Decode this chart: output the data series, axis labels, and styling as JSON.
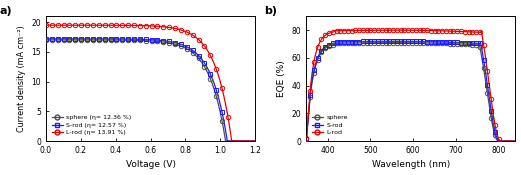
{
  "panel_a": {
    "title": "a)",
    "xlabel": "Voltage (V)",
    "ylabel": "Current density (mA cm⁻²)",
    "xlim": [
      0,
      1.2
    ],
    "ylim": [
      0,
      21
    ],
    "yticks": [
      0,
      5,
      10,
      15,
      20
    ],
    "xticks": [
      0.0,
      0.2,
      0.4,
      0.6,
      0.8,
      1.0,
      1.2
    ],
    "series": {
      "sphere": {
        "label": "sphere (η= 12.36 %)",
        "color": "#4d4d4d",
        "jsc": 17.0,
        "voc": 1.03,
        "n": 3.5,
        "marker": "o"
      },
      "srod": {
        "label": "S-rod (η= 12.57 %)",
        "color": "#1a1aff",
        "jsc": 17.2,
        "voc": 1.04,
        "n": 3.5,
        "marker": "s"
      },
      "lrod": {
        "label": "L-rod (η= 13.91 %)",
        "color": "#e60000",
        "jsc": 19.5,
        "voc": 1.065,
        "n": 3.5,
        "marker": "o"
      }
    },
    "marker_every": 14
  },
  "panel_b": {
    "title": "b)",
    "xlabel": "Wavelength (nm)",
    "ylabel": "EQE (%)",
    "xlim": [
      350,
      840
    ],
    "ylim": [
      0,
      90
    ],
    "yticks": [
      0,
      20,
      40,
      60,
      80
    ],
    "xticks": [
      400,
      500,
      600,
      700,
      800
    ],
    "series": {
      "sphere": {
        "label": "sphere",
        "color": "#4d4d4d",
        "plateau": 70.5,
        "start_val": 57,
        "rise_end": 420,
        "drop_start": 755,
        "drop_end": 800,
        "marker": "o"
      },
      "srod": {
        "label": "S-rod",
        "color": "#1a1aff",
        "plateau": 71.5,
        "start_val": 60,
        "rise_end": 420,
        "drop_start": 758,
        "drop_end": 802,
        "marker": "s"
      },
      "lrod": {
        "label": "L-rod",
        "color": "#e60000",
        "plateau": 79.5,
        "start_val": 65,
        "rise_end": 415,
        "drop_start": 760,
        "drop_end": 805,
        "marker": "o"
      }
    },
    "marker_every": 18
  }
}
